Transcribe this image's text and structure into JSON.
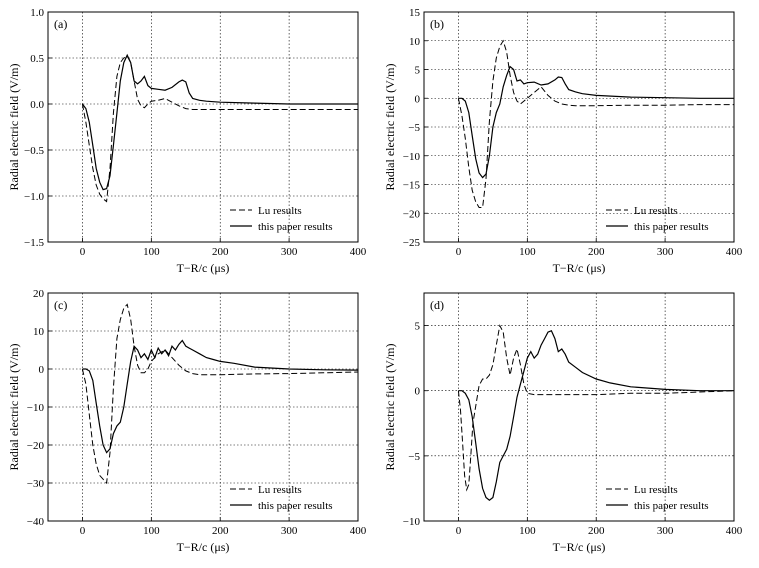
{
  "chart_data": [
    {
      "type": "line",
      "panel_label": "(a)",
      "xlabel": "T−R/c (μs)",
      "ylabel": "Radial electric field (V/m)",
      "xlim": [
        -50,
        400
      ],
      "ylim": [
        -1.5,
        1.0
      ],
      "xticks": [
        0,
        100,
        200,
        300,
        400
      ],
      "yticks": [
        -1.5,
        -1.0,
        -0.5,
        0.0,
        0.5,
        1.0
      ],
      "ytick_labels": [
        "−1.5",
        "−1.0",
        "−0.5",
        "0.0",
        "0.5",
        "1.0"
      ],
      "grid": true,
      "legend_position": "bottom-right",
      "series": [
        {
          "name": "Lu results",
          "style": "dashed",
          "x": [
            0,
            5,
            10,
            15,
            20,
            25,
            30,
            35,
            40,
            45,
            50,
            55,
            60,
            65,
            70,
            75,
            80,
            85,
            90,
            95,
            100,
            110,
            120,
            130,
            140,
            150,
            160,
            170,
            180,
            200,
            250,
            300,
            350,
            400
          ],
          "y": [
            0.0,
            -0.2,
            -0.45,
            -0.7,
            -0.88,
            -0.98,
            -1.03,
            -1.06,
            -0.7,
            -0.1,
            0.3,
            0.45,
            0.5,
            0.52,
            0.45,
            0.25,
            0.05,
            -0.02,
            -0.04,
            0.0,
            0.03,
            0.04,
            0.06,
            0.02,
            -0.02,
            -0.05,
            -0.06,
            -0.06,
            -0.06,
            -0.06,
            -0.06,
            -0.06,
            -0.06,
            -0.06
          ]
        },
        {
          "name": "this paper results",
          "style": "solid",
          "x": [
            0,
            5,
            10,
            15,
            20,
            25,
            30,
            35,
            40,
            45,
            50,
            55,
            60,
            65,
            70,
            75,
            80,
            85,
            90,
            95,
            100,
            110,
            120,
            130,
            140,
            145,
            150,
            155,
            160,
            170,
            180,
            200,
            250,
            300,
            350,
            400
          ],
          "y": [
            0.0,
            -0.05,
            -0.2,
            -0.45,
            -0.7,
            -0.85,
            -0.93,
            -0.92,
            -0.78,
            -0.45,
            -0.1,
            0.25,
            0.45,
            0.53,
            0.45,
            0.25,
            0.22,
            0.25,
            0.3,
            0.2,
            0.17,
            0.16,
            0.15,
            0.18,
            0.24,
            0.26,
            0.24,
            0.12,
            0.06,
            0.04,
            0.03,
            0.02,
            0.01,
            0.0,
            0.0,
            0.0
          ]
        }
      ]
    },
    {
      "type": "line",
      "panel_label": "(b)",
      "xlabel": "T−R/c (μs)",
      "ylabel": "Radial electric field (V/m)",
      "xlim": [
        -50,
        400
      ],
      "ylim": [
        -25,
        15
      ],
      "xticks": [
        0,
        100,
        200,
        300,
        400
      ],
      "yticks": [
        -25,
        -20,
        -15,
        -10,
        -5,
        0,
        5,
        10,
        15
      ],
      "ytick_labels": [
        "−25",
        "−20",
        "−15",
        "−10",
        "−5",
        "0",
        "5",
        "10",
        "15"
      ],
      "grid": true,
      "legend_position": "bottom-right",
      "series": [
        {
          "name": "Lu results",
          "style": "dashed",
          "x": [
            0,
            5,
            10,
            15,
            20,
            25,
            30,
            35,
            40,
            45,
            50,
            55,
            60,
            65,
            70,
            75,
            80,
            85,
            90,
            95,
            100,
            110,
            120,
            130,
            140,
            150,
            160,
            170,
            180,
            200,
            250,
            300,
            350,
            400
          ],
          "y": [
            0,
            -3,
            -7,
            -12,
            -16,
            -18,
            -19,
            -19,
            -14,
            -4,
            3,
            7,
            9,
            10,
            8,
            4,
            1,
            -0.5,
            -1,
            -0.5,
            0,
            1,
            2,
            0.5,
            -0.5,
            -1,
            -1.2,
            -1.3,
            -1.3,
            -1.3,
            -1.2,
            -1.2,
            -1.1,
            -1.1
          ]
        },
        {
          "name": "this paper results",
          "style": "solid",
          "x": [
            0,
            5,
            10,
            15,
            20,
            25,
            30,
            35,
            40,
            45,
            50,
            55,
            60,
            65,
            70,
            75,
            80,
            85,
            90,
            95,
            100,
            110,
            120,
            130,
            140,
            145,
            150,
            155,
            160,
            170,
            180,
            200,
            250,
            300,
            350,
            400
          ],
          "y": [
            0,
            0,
            -0.5,
            -2.5,
            -6.5,
            -10.5,
            -13,
            -13.8,
            -13.2,
            -10,
            -5,
            -2.5,
            -1,
            2,
            4,
            5.5,
            5,
            3,
            3.2,
            2.5,
            2.7,
            2.8,
            2.3,
            2.5,
            3.2,
            3.7,
            3.6,
            2.5,
            1.5,
            1.1,
            0.8,
            0.5,
            0.2,
            0.1,
            0.0,
            0.0
          ]
        }
      ]
    },
    {
      "type": "line",
      "panel_label": "(c)",
      "xlabel": "T−R/c (μs)",
      "ylabel": "Radial electric field (V/m)",
      "xlim": [
        -50,
        400
      ],
      "ylim": [
        -40,
        20
      ],
      "xticks": [
        0,
        100,
        200,
        300,
        400
      ],
      "yticks": [
        -40,
        -30,
        -20,
        -10,
        0,
        10,
        20
      ],
      "ytick_labels": [
        "−40",
        "−30",
        "−20",
        "−10",
        "0",
        "10",
        "20"
      ],
      "grid": true,
      "legend_position": "bottom-right",
      "series": [
        {
          "name": "Lu results",
          "style": "dashed",
          "x": [
            0,
            5,
            10,
            15,
            20,
            25,
            30,
            35,
            40,
            45,
            50,
            55,
            60,
            65,
            70,
            75,
            80,
            85,
            90,
            95,
            100,
            110,
            120,
            130,
            140,
            150,
            160,
            170,
            180,
            200,
            250,
            300,
            350,
            400
          ],
          "y": [
            0,
            -4,
            -12,
            -20,
            -25,
            -28,
            -29,
            -30,
            -22,
            -5,
            8,
            13,
            16,
            17,
            13,
            6,
            1,
            -1,
            -1,
            0,
            2,
            4,
            5,
            3,
            1,
            -0.5,
            -1.2,
            -1.5,
            -1.5,
            -1.5,
            -1.3,
            -1.2,
            -1.0,
            -0.8
          ]
        },
        {
          "name": "this paper results",
          "style": "solid",
          "x": [
            0,
            5,
            10,
            15,
            20,
            25,
            30,
            35,
            40,
            45,
            50,
            55,
            60,
            65,
            70,
            75,
            80,
            85,
            90,
            95,
            100,
            105,
            110,
            115,
            120,
            125,
            130,
            135,
            140,
            145,
            150,
            155,
            160,
            170,
            180,
            190,
            200,
            220,
            250,
            300,
            350,
            400
          ],
          "y": [
            0,
            0,
            -0.5,
            -3,
            -9,
            -15,
            -20,
            -22,
            -21,
            -17,
            -15,
            -14,
            -10,
            -4,
            2,
            6,
            5,
            3,
            4,
            2.5,
            5,
            3,
            5.5,
            4,
            5,
            3.5,
            6,
            5,
            6.5,
            7.5,
            6,
            5.5,
            5,
            4,
            3,
            2.5,
            2,
            1.5,
            0.5,
            0.0,
            -0.2,
            -0.3
          ]
        }
      ]
    },
    {
      "type": "line",
      "panel_label": "(d)",
      "xlabel": "T−R/c (μs)",
      "ylabel": "Radial electric field (V/m)",
      "xlim": [
        -50,
        400
      ],
      "ylim": [
        -10,
        7.5
      ],
      "xticks": [
        0,
        100,
        200,
        300,
        400
      ],
      "yticks": [
        -10,
        -5,
        0,
        5
      ],
      "ytick_labels": [
        "−10",
        "−5",
        "0",
        "5"
      ],
      "grid": true,
      "legend_position": "bottom-right",
      "series": [
        {
          "name": "Lu results",
          "style": "dashed",
          "x": [
            0,
            3,
            6,
            9,
            12,
            15,
            18,
            21,
            25,
            30,
            35,
            40,
            45,
            50,
            55,
            60,
            65,
            70,
            75,
            80,
            85,
            90,
            95,
            100,
            110,
            120,
            130,
            140,
            150,
            160,
            170,
            180,
            200,
            250,
            300,
            350,
            400
          ],
          "y": [
            0,
            -1.5,
            -4,
            -6.5,
            -7.6,
            -7.2,
            -5,
            -2.5,
            -1.2,
            0.4,
            0.9,
            0.9,
            1.2,
            2,
            3.5,
            5,
            4.5,
            2.5,
            1.2,
            2.5,
            3.2,
            2,
            0.5,
            -0.2,
            -0.3,
            -0.3,
            -0.3,
            -0.3,
            -0.3,
            -0.3,
            -0.3,
            -0.3,
            -0.3,
            -0.2,
            -0.2,
            -0.1,
            0.0
          ]
        },
        {
          "name": "this paper results",
          "style": "solid",
          "x": [
            0,
            5,
            10,
            15,
            20,
            25,
            30,
            35,
            40,
            45,
            50,
            55,
            60,
            65,
            70,
            75,
            80,
            85,
            90,
            95,
            100,
            105,
            110,
            115,
            120,
            125,
            130,
            135,
            140,
            145,
            150,
            155,
            160,
            170,
            180,
            200,
            220,
            250,
            300,
            350,
            400
          ],
          "y": [
            0,
            0,
            -0.2,
            -0.7,
            -2,
            -4,
            -6,
            -7.5,
            -8.2,
            -8.4,
            -8.2,
            -7,
            -5.5,
            -5,
            -4.5,
            -3.5,
            -2,
            -0.5,
            0.5,
            1.5,
            2.5,
            3,
            2.5,
            2.8,
            3.5,
            4,
            4.5,
            4.6,
            4,
            3,
            3.2,
            2.8,
            2.2,
            1.8,
            1.4,
            0.9,
            0.6,
            0.3,
            0.1,
            0.0,
            0.0
          ]
        }
      ]
    }
  ]
}
